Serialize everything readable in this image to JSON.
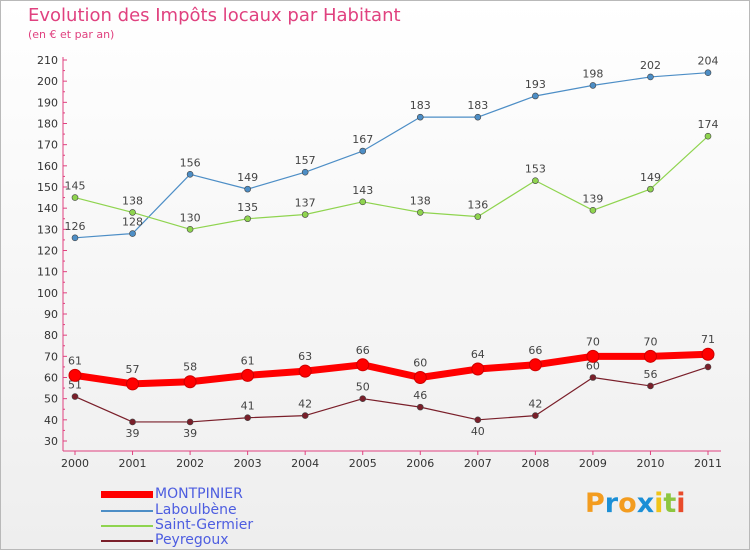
{
  "header": {
    "title": "Evolution des Impôts locaux par Habitant",
    "subtitle": "(en € et par an)"
  },
  "chart_data": {
    "type": "line",
    "x": [
      "2000",
      "2001",
      "2002",
      "2003",
      "2004",
      "2005",
      "2006",
      "2007",
      "2008",
      "2009",
      "2010",
      "2011"
    ],
    "ylim": [
      30,
      210
    ],
    "yticks": [
      30,
      40,
      50,
      60,
      70,
      80,
      90,
      100,
      110,
      120,
      130,
      140,
      150,
      160,
      170,
      180,
      190,
      200,
      210
    ],
    "grid": false,
    "legend_position": "bottom-left",
    "series": [
      {
        "name": "Laboulbène",
        "color": "#4d8ec6",
        "values": [
          126,
          128,
          156,
          149,
          157,
          167,
          183,
          183,
          193,
          198,
          202,
          204
        ]
      },
      {
        "name": "Saint-Germier",
        "color": "#8fd44f",
        "values": [
          145,
          138,
          130,
          135,
          137,
          143,
          138,
          136,
          153,
          139,
          149,
          174
        ]
      },
      {
        "name": "Peyregoux",
        "color": "#7a1f2a",
        "values": [
          51,
          39,
          39,
          41,
          42,
          50,
          46,
          40,
          42,
          60,
          56,
          65
        ]
      },
      {
        "name": "MONTPINIER",
        "color": "#ff0000",
        "values": [
          61,
          57,
          58,
          61,
          63,
          66,
          60,
          64,
          66,
          70,
          70,
          71
        ]
      }
    ]
  },
  "legend": [
    {
      "label": "MONTPINIER",
      "color": "#ff0000"
    },
    {
      "label": "Laboulbène",
      "color": "#4d8ec6"
    },
    {
      "label": "Saint-Germier",
      "color": "#8fd44f"
    },
    {
      "label": "Peyregoux",
      "color": "#7a1f2a"
    }
  ],
  "logo": {
    "text": "Proxiti",
    "colors": [
      "#f39c1f",
      "#1b8fd6",
      "#f39c1f",
      "#1b8fd6",
      "#f0c419",
      "#8dc63f",
      "#e94b2a"
    ]
  }
}
